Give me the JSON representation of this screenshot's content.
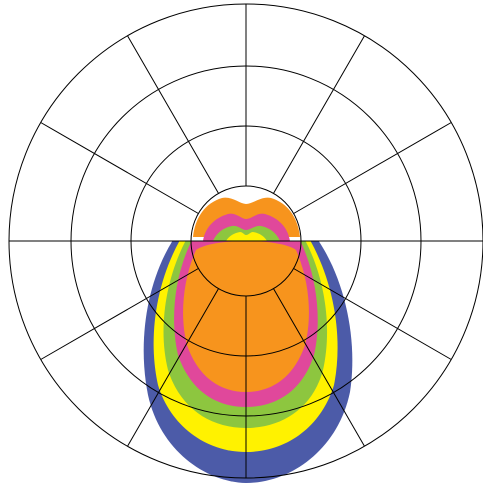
{
  "chart_data": {
    "type": "polar-area",
    "title": "",
    "grid": true,
    "radial_rings": 4,
    "angular_step_deg": 30,
    "series": [
      {
        "color": "#4C5BA8",
        "layer": "outer"
      },
      {
        "color": "#FFF200",
        "layer": "mid-outer"
      },
      {
        "color": "#8DC63F",
        "layer": "middle"
      },
      {
        "color": "#E0489B",
        "layer": "mid-inner"
      },
      {
        "color": "#F7941D",
        "layer": "inner"
      }
    ],
    "grid_color": "#000000"
  }
}
